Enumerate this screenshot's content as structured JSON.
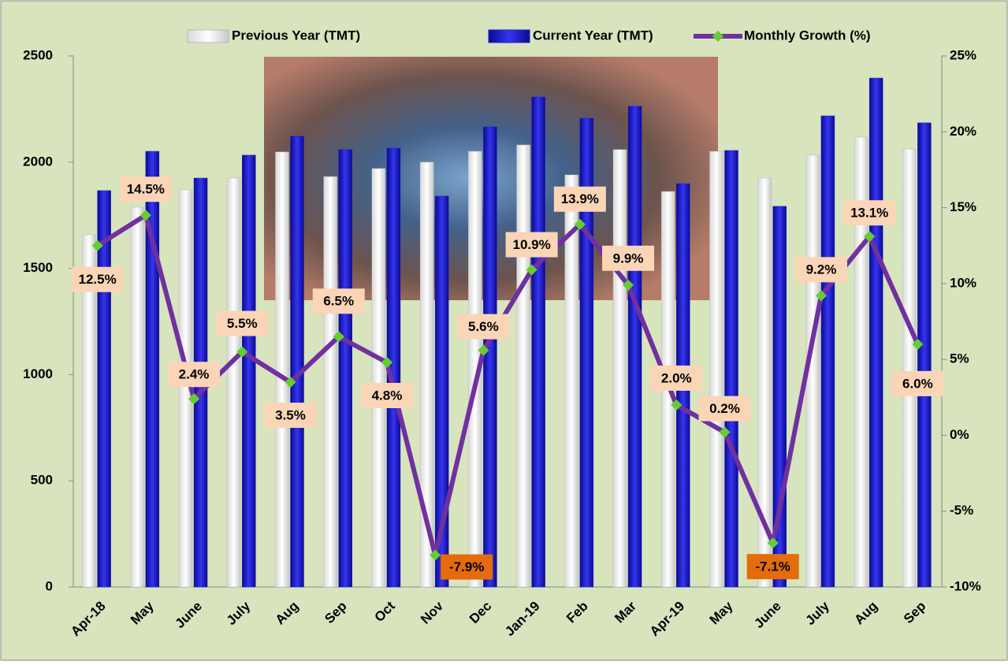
{
  "chart_data": {
    "type": "bar-line",
    "categories": [
      "Apr-18",
      "May",
      "June",
      "July",
      "Aug",
      "Sep",
      "Oct",
      "Nov",
      "Dec",
      "Jan-19",
      "Feb",
      "Mar",
      "Apr-19",
      "May",
      "June",
      "July",
      "Aug",
      "Sep"
    ],
    "series": [
      {
        "name": "Previous Year (TMT)",
        "type": "bar",
        "color": "#f2f2f2",
        "values": [
          1658,
          1788,
          1870,
          1925,
          2048,
          1932,
          1970,
          2000,
          2051,
          2081,
          1940,
          2059,
          1862,
          2051,
          1925,
          2033,
          2118,
          2062
        ]
      },
      {
        "name": "Current Year (TMT)",
        "type": "bar",
        "color": "#1f1fd0",
        "values": [
          1866,
          2051,
          1925,
          2033,
          2122,
          2059,
          2066,
          1840,
          2166,
          2307,
          2207,
          2263,
          1899,
          2055,
          1792,
          2218,
          2396,
          2185
        ]
      },
      {
        "name": "Monthly Growth (%)",
        "type": "line",
        "axis": "y2",
        "color": "#7030a0",
        "marker_color": "#66cc33",
        "values": [
          12.5,
          14.5,
          2.4,
          5.5,
          3.5,
          6.5,
          4.8,
          -7.9,
          5.6,
          10.9,
          13.9,
          9.9,
          2.0,
          0.2,
          -7.1,
          9.2,
          13.1,
          6.0
        ],
        "value_labels": [
          "12.5%",
          "14.5%",
          "2.4%",
          "5.5%",
          "3.5%",
          "6.5%",
          "4.8%",
          "-7.9%",
          "5.6%",
          "10.9%",
          "13.9%",
          "9.9%",
          "2.0%",
          "0.2%",
          "-7.1%",
          "9.2%",
          "13.1%",
          "6.0%"
        ]
      }
    ],
    "ylim": [
      0,
      2500
    ],
    "yticks": [
      0,
      500,
      1000,
      1500,
      2000,
      2500
    ],
    "y2lim": [
      -10,
      25
    ],
    "y2ticks": [
      {
        "value": -10,
        "label": "-10%"
      },
      {
        "value": -5,
        "label": "-5%"
      },
      {
        "value": 0,
        "label": "0%"
      },
      {
        "value": 5,
        "label": "5%"
      },
      {
        "value": 10,
        "label": "10%"
      },
      {
        "value": 15,
        "label": "15%"
      },
      {
        "value": 20,
        "label": "20%"
      },
      {
        "value": 25,
        "label": "25%"
      }
    ],
    "legend": "top"
  }
}
